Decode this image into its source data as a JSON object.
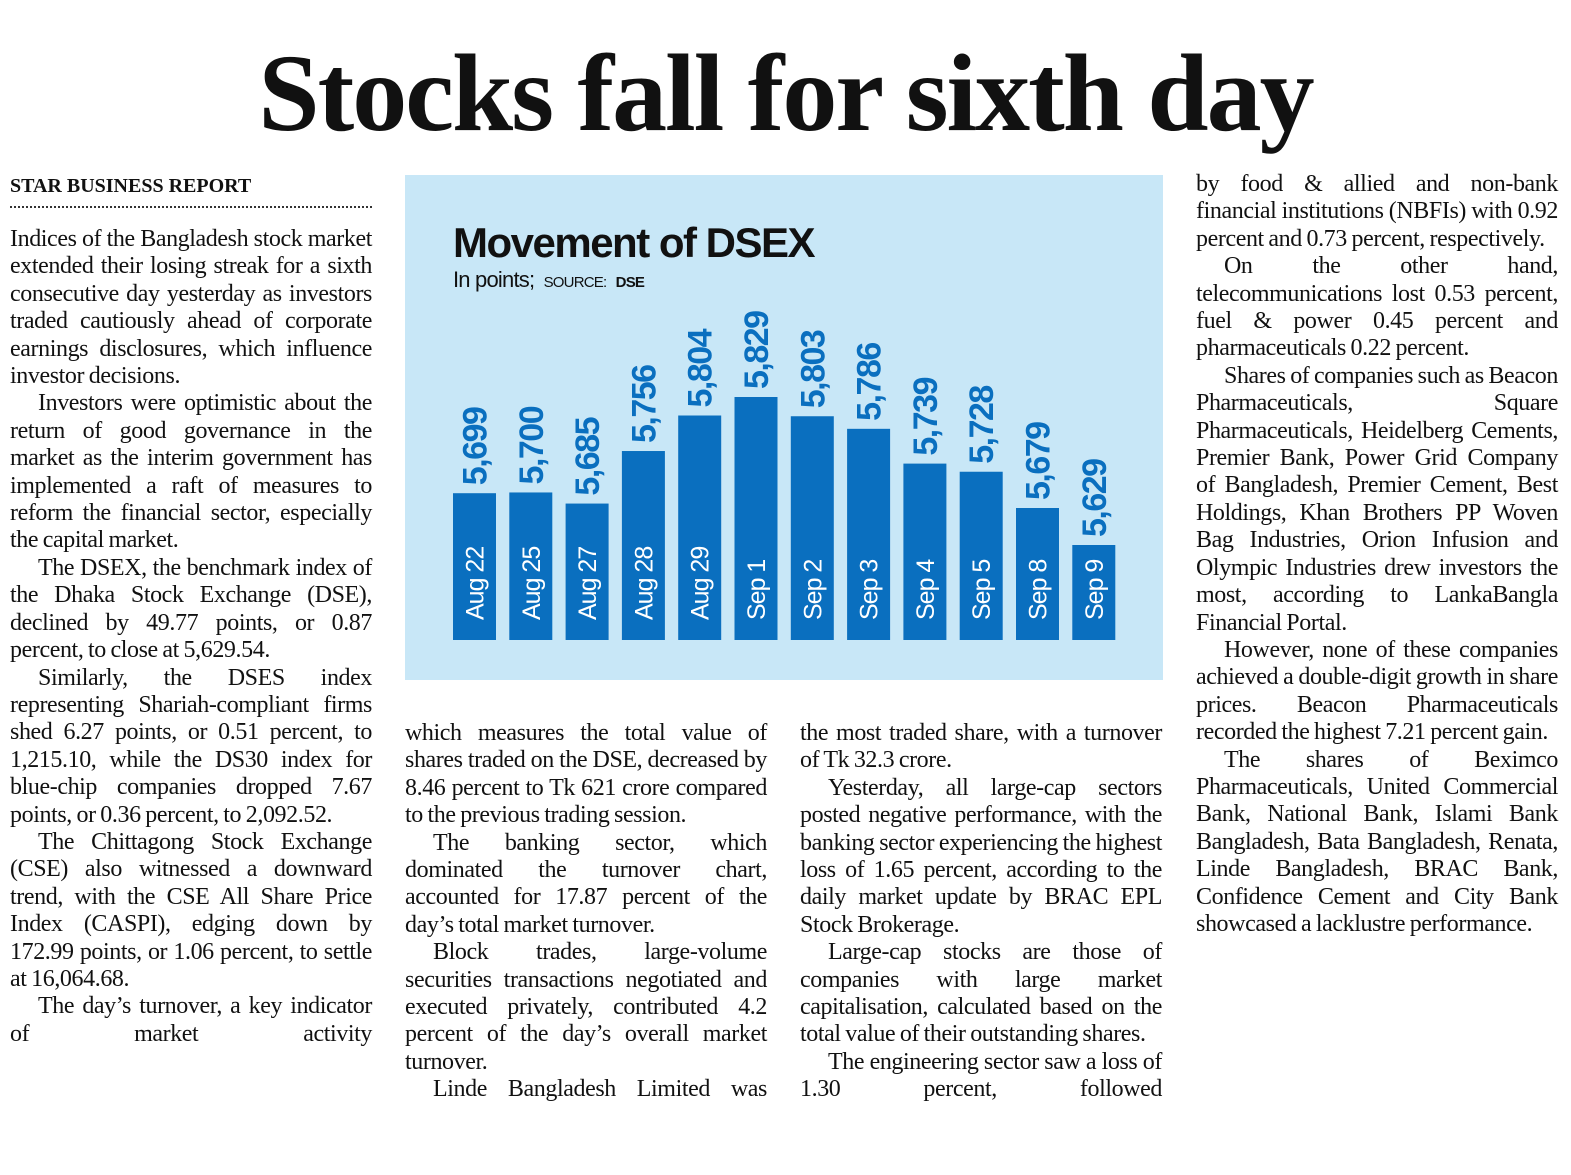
{
  "headline": "Stocks fall for sixth day",
  "byline": "STAR BUSINESS REPORT",
  "columns": [
    {
      "paragraphs": [
        "Indices of the Bangladesh stock market extended their losing streak for a sixth consecutive day yesterday as investors traded cautiously ahead of corporate earnings disclosures, which influence investor decisions.",
        "Investors were optimistic about the return of good governance in the market as the interim government has implemented a raft of measures to reform the financial sector, especially the capital market.",
        "The DSEX, the benchmark index of the Dhaka Stock Exchange (DSE), declined by 49.77 points, or 0.87 percent, to close at 5,629.54.",
        "Similarly, the DSES index representing Shariah-compliant firms shed 6.27 points, or 0.51 percent, to 1,215.10, while the DS30 index for blue-chip companies dropped 7.67 points, or 0.36 percent, to 2,092.52.",
        "The Chittagong Stock Exchange (CSE) also witnessed a downward trend, with the CSE All Share Price Index (CASPI), edging down by 172.99 points, or 1.06 percent, to settle at 16,064.68.",
        "The day’s turnover, a key indicator of market activity"
      ]
    },
    {
      "paragraphs": [
        "which measures the total value of shares traded on the DSE, decreased by 8.46 percent to Tk 621 crore compared to the previous trading session.",
        "The banking sector, which dominated the turnover chart, accounted for 17.87 percent of the day’s total market turnover.",
        "Block trades, large-volume securities transactions negotiated and executed privately, contributed 4.2 percent of the day’s overall market turnover.",
        "Linde Bangladesh Limited was"
      ]
    },
    {
      "paragraphs": [
        "the most traded share, with a turnover of Tk 32.3 crore.",
        "Yesterday, all large-cap sectors posted negative performance, with the banking sector experiencing the highest loss of 1.65 percent, according to the daily market update by BRAC EPL Stock Brokerage.",
        "Large-cap stocks are those of companies with large market capitalisation, calculated based on the total value of their outstanding shares.",
        "The engineering sector saw a loss of 1.30 percent, followed"
      ]
    },
    {
      "paragraphs": [
        "by food & allied and non-bank financial institutions (NBFIs) with 0.92 percent and 0.73 percent, respectively.",
        "On the other hand, telecommunications lost 0.53 percent, fuel & power 0.45 percent and pharmaceuticals 0.22 percent.",
        "Shares of companies such as Beacon Pharmaceuticals, Square Pharmaceuticals, Heidelberg Cements, Premier Bank, Power Grid Company of Bangladesh, Premier Cement, Best Holdings, Khan Brothers PP Woven Bag Industries, Orion Infusion and Olympic Industries drew investors the most, according to LankaBangla Financial Portal.",
        "However, none of these companies achieved a double-digit growth in share prices. Beacon Pharmaceuticals recorded the highest 7.21 percent gain.",
        "The shares of Beximco Pharmaceuticals, United Commercial Bank, National Bank, Islami Bank Bangladesh, Bata Bangladesh, Renata, Linde Bangladesh, BRAC Bank, Confidence Cement and City Bank showcased a lacklustre performance."
      ]
    }
  ],
  "chart_data": {
    "type": "bar",
    "title": "Movement of DSEX",
    "subtitle": "In points;",
    "source_label": "SOURCE:",
    "source": "DSE",
    "categories": [
      "Aug 22",
      "Aug 25",
      "Aug 27",
      "Aug 28",
      "Aug 29",
      "Sep 1",
      "Sep 2",
      "Sep 3",
      "Sep 4",
      "Sep 5",
      "Sep 8",
      "Sep 9"
    ],
    "values": [
      5699,
      5700,
      5685,
      5756,
      5804,
      5829,
      5803,
      5786,
      5739,
      5728,
      5679,
      5629
    ],
    "value_labels": [
      "5,699",
      "5,700",
      "5,685",
      "5,756",
      "5,804",
      "5,829",
      "5,803",
      "5,786",
      "5,739",
      "5,728",
      "5,679",
      "5,629"
    ],
    "color": "#0a6fbf",
    "background": "#c8e7f7"
  }
}
